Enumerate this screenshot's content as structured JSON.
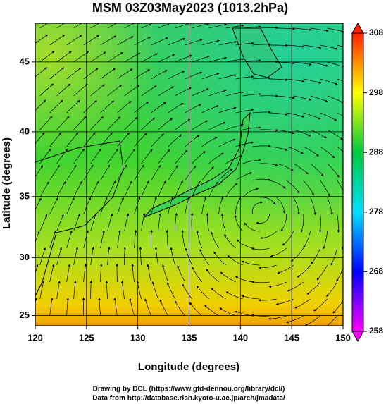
{
  "chart_data": {
    "type": "map",
    "title": "MSM 03Z03May2023 (1013.2hPa)",
    "x_label": "Longitude (degrees)",
    "y_label": "Latitude  (degrees)",
    "xlim": [
      120,
      150
    ],
    "xticks": [
      120,
      125,
      130,
      135,
      140,
      145,
      150
    ],
    "ylim": [
      24.1,
      47.6
    ],
    "yticks": [
      25,
      30,
      35,
      40,
      45
    ],
    "y_scale": "mercator",
    "grid": true,
    "colorbar": {
      "lim": [
        258,
        308
      ],
      "ticks": [
        258,
        268,
        278,
        288,
        298,
        308
      ],
      "colors": [
        "#ff00ff",
        "#0000ff",
        "#00e0ff",
        "#00c840",
        "#ffff00",
        "#ff2000"
      ]
    }
  },
  "credits": [
    "Drawing by DCL (https://www.gfd-dennou.org/library/dcl/)",
    "Data from http://database.rish.kyoto-u.ac.jp/arch/jmadata/"
  ]
}
